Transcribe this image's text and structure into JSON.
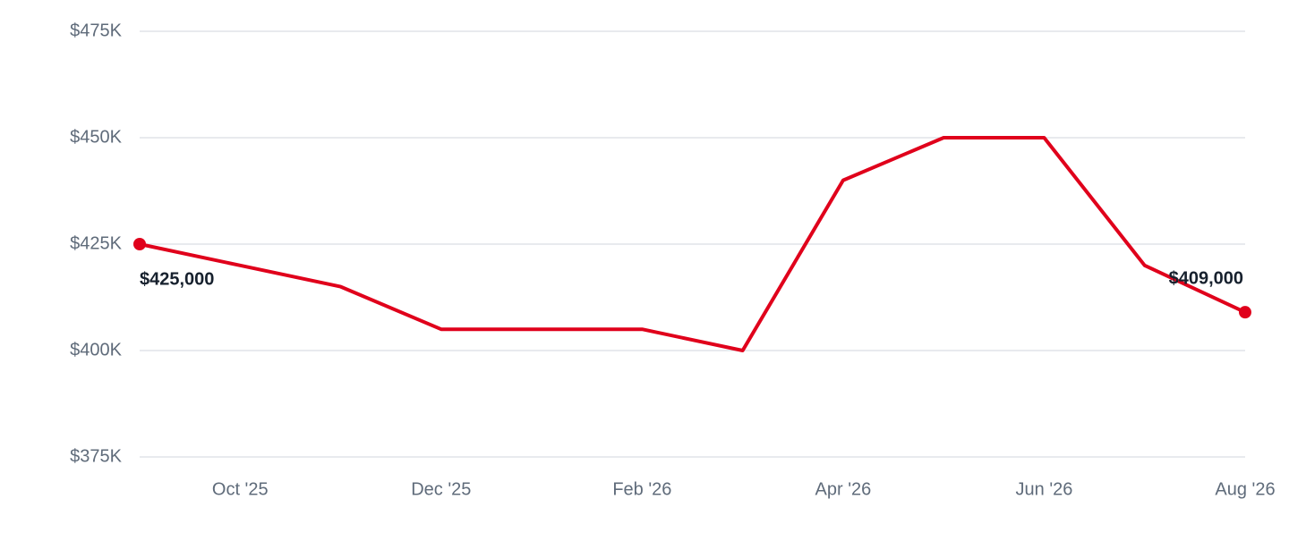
{
  "chart_data": {
    "type": "line",
    "categories": [
      null,
      "Oct '25",
      null,
      "Dec '25",
      null,
      "Feb '26",
      null,
      "Apr '26",
      null,
      "Jun '26",
      null,
      "Aug '26"
    ],
    "series": [
      {
        "name": null,
        "color": "#e0001b",
        "values": [
          425000,
          420000,
          415000,
          405000,
          405000,
          405000,
          400000,
          440000,
          450000,
          450000,
          420000,
          409000
        ],
        "value_labels": [
          "$425,000",
          null,
          null,
          null,
          null,
          null,
          null,
          null,
          null,
          null,
          null,
          "$409,000"
        ]
      }
    ],
    "ylim": [
      375000,
      475000
    ],
    "yticks": [
      {
        "value": 375000,
        "label": "$375K"
      },
      {
        "value": 400000,
        "label": "$400K"
      },
      {
        "value": 425000,
        "label": "$425K"
      },
      {
        "value": 450000,
        "label": "$450K"
      },
      {
        "value": 475000,
        "label": "$475K"
      }
    ],
    "grid": true
  }
}
